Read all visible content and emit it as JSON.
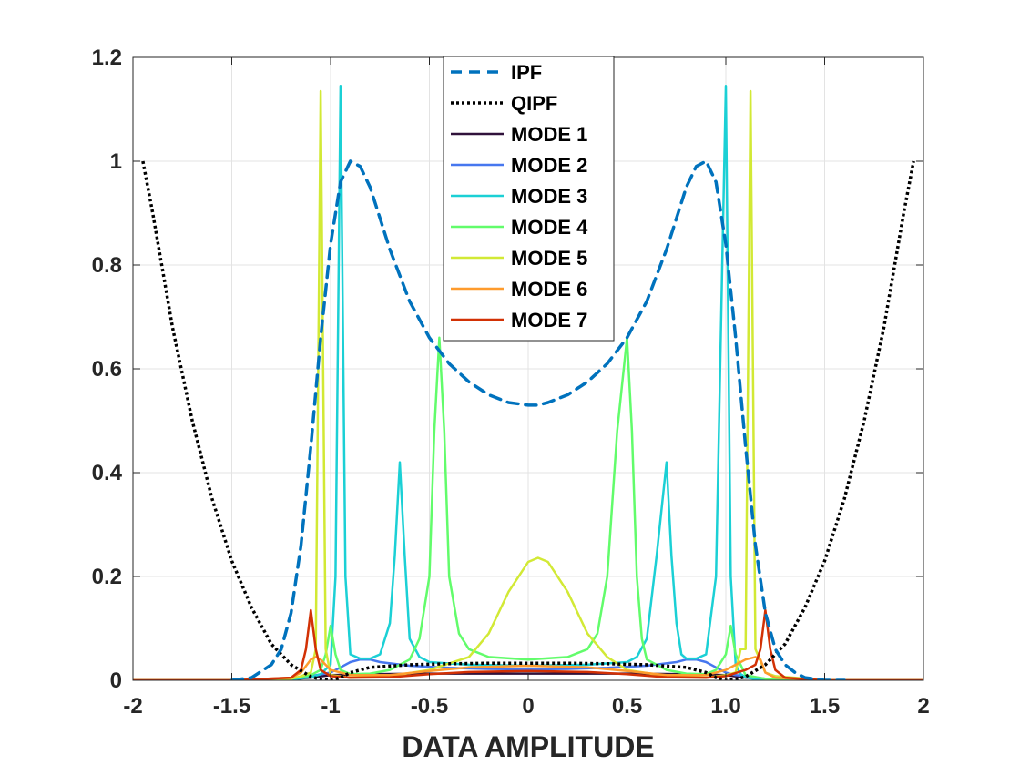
{
  "chart_data": {
    "type": "line",
    "title": "",
    "xlabel": "DATA  AMPLITUDE",
    "ylabel": "",
    "xlim": [
      -2,
      2
    ],
    "ylim": [
      0,
      1.2
    ],
    "grid": true,
    "legend_position": "top-center",
    "xticks": [
      -2,
      -1.5,
      -1,
      -0.5,
      0,
      0.5,
      1,
      1.5,
      2
    ],
    "xtick_labels": [
      "-2",
      "-1.5",
      "-1",
      "-0.5",
      "0",
      "0.5",
      "1.0",
      "1.5",
      "2"
    ],
    "yticks": [
      0,
      0.2,
      0.4,
      0.6,
      0.8,
      1,
      1.2
    ],
    "ytick_labels": [
      "0",
      "0.2",
      "0.4",
      "0.6",
      "0.8",
      "1",
      "1.2"
    ],
    "series": [
      {
        "name": "IPF",
        "color": "#0072BD",
        "style": "dashed",
        "x": [
          -1.5,
          -1.4,
          -1.3,
          -1.25,
          -1.2,
          -1.15,
          -1.1,
          -1.05,
          -1.0,
          -0.95,
          -0.9,
          -0.85,
          -0.8,
          -0.75,
          -0.7,
          -0.6,
          -0.5,
          -0.4,
          -0.3,
          -0.2,
          -0.1,
          0.0,
          0.05,
          0.1,
          0.2,
          0.3,
          0.4,
          0.5,
          0.6,
          0.7,
          0.75,
          0.8,
          0.85,
          0.9,
          0.95,
          1.0,
          1.05,
          1.1,
          1.15,
          1.2,
          1.25,
          1.3,
          1.35,
          1.4,
          1.5,
          1.6
        ],
        "values": [
          0.0,
          0.005,
          0.03,
          0.06,
          0.13,
          0.26,
          0.45,
          0.66,
          0.84,
          0.96,
          1.0,
          0.99,
          0.95,
          0.89,
          0.83,
          0.73,
          0.66,
          0.61,
          0.575,
          0.55,
          0.535,
          0.53,
          0.53,
          0.535,
          0.55,
          0.575,
          0.61,
          0.66,
          0.73,
          0.83,
          0.89,
          0.95,
          0.99,
          1.0,
          0.96,
          0.84,
          0.66,
          0.45,
          0.26,
          0.13,
          0.06,
          0.03,
          0.015,
          0.005,
          0.0,
          0.0
        ]
      },
      {
        "name": "QIPF",
        "color": "#000000",
        "style": "dotted",
        "x": [
          -1.95,
          -1.9,
          -1.8,
          -1.7,
          -1.6,
          -1.5,
          -1.4,
          -1.3,
          -1.2,
          -1.1,
          -1.05,
          -1.0,
          -0.95,
          -0.9,
          -0.8,
          -0.6,
          -0.4,
          -0.2,
          0.0,
          0.2,
          0.4,
          0.6,
          0.8,
          0.9,
          0.95,
          1.0,
          1.05,
          1.1,
          1.2,
          1.3,
          1.4,
          1.5,
          1.6,
          1.7,
          1.8,
          1.9,
          1.95
        ],
        "values": [
          1.0,
          0.9,
          0.68,
          0.5,
          0.35,
          0.23,
          0.14,
          0.07,
          0.03,
          0.007,
          0.002,
          0.0,
          0.005,
          0.015,
          0.025,
          0.03,
          0.032,
          0.033,
          0.033,
          0.033,
          0.032,
          0.03,
          0.025,
          0.015,
          0.005,
          0.0,
          0.002,
          0.007,
          0.03,
          0.07,
          0.14,
          0.23,
          0.35,
          0.5,
          0.68,
          0.9,
          1.0
        ]
      },
      {
        "name": "MODE 1",
        "color": "#30123B",
        "style": "solid",
        "x": [
          -2.0,
          -1.5,
          -1.2,
          -1.1,
          -1.0,
          -0.8,
          -0.5,
          0.0,
          0.5,
          0.8,
          1.0,
          1.1,
          1.2,
          1.5,
          2.0
        ],
        "values": [
          0.0,
          0.0,
          0.002,
          0.005,
          0.01,
          0.012,
          0.013,
          0.013,
          0.013,
          0.012,
          0.01,
          0.005,
          0.002,
          0.0,
          0.0
        ]
      },
      {
        "name": "MODE 2",
        "color": "#4777EF",
        "style": "solid",
        "x": [
          -2.0,
          -1.5,
          -1.2,
          -1.1,
          -1.0,
          -0.95,
          -0.9,
          -0.85,
          -0.8,
          -0.75,
          -0.6,
          -0.4,
          -0.2,
          0.0,
          0.2,
          0.4,
          0.6,
          0.75,
          0.8,
          0.85,
          0.9,
          0.95,
          1.0,
          1.05,
          1.1,
          1.2,
          1.5,
          2.0
        ],
        "values": [
          0.0,
          0.0,
          0.003,
          0.008,
          0.015,
          0.025,
          0.035,
          0.04,
          0.04,
          0.035,
          0.028,
          0.024,
          0.022,
          0.021,
          0.022,
          0.024,
          0.028,
          0.035,
          0.04,
          0.04,
          0.035,
          0.025,
          0.015,
          0.01,
          0.008,
          0.003,
          0.0,
          0.0
        ]
      },
      {
        "name": "MODE 3",
        "color": "#1BD0D5",
        "style": "solid",
        "x": [
          -2.0,
          -1.5,
          -1.2,
          -1.1,
          -1.05,
          -1.0,
          -0.975,
          -0.95,
          -0.925,
          -0.9,
          -0.85,
          -0.8,
          -0.75,
          -0.7,
          -0.675,
          -0.65,
          -0.625,
          -0.6,
          -0.55,
          -0.5,
          -0.3,
          0.0,
          0.3,
          0.5,
          0.55,
          0.6,
          0.65,
          0.7,
          0.725,
          0.75,
          0.775,
          0.8,
          0.85,
          0.9,
          0.95,
          1.0,
          1.025,
          1.05,
          1.075,
          1.1,
          1.15,
          1.2,
          1.5,
          2.0
        ],
        "values": [
          0.0,
          0.0,
          0.002,
          0.006,
          0.012,
          0.03,
          0.2,
          1.145,
          0.2,
          0.05,
          0.042,
          0.042,
          0.05,
          0.11,
          0.24,
          0.42,
          0.24,
          0.08,
          0.045,
          0.035,
          0.03,
          0.028,
          0.03,
          0.035,
          0.045,
          0.08,
          0.24,
          0.42,
          0.24,
          0.11,
          0.05,
          0.042,
          0.042,
          0.05,
          0.2,
          1.145,
          0.2,
          0.03,
          0.012,
          0.006,
          0.002,
          0.0,
          0.0,
          0.0
        ]
      },
      {
        "name": "MODE 4",
        "color": "#62FC6B",
        "style": "solid",
        "x": [
          -2.0,
          -1.5,
          -1.2,
          -1.1,
          -1.05,
          -1.025,
          -1.0,
          -0.975,
          -0.95,
          -0.9,
          -0.8,
          -0.7,
          -0.6,
          -0.55,
          -0.5,
          -0.475,
          -0.45,
          -0.425,
          -0.4,
          -0.35,
          -0.3,
          -0.2,
          0.0,
          0.2,
          0.3,
          0.35,
          0.4,
          0.45,
          0.5,
          0.525,
          0.55,
          0.575,
          0.6,
          0.7,
          0.8,
          0.9,
          0.95,
          1.0,
          1.025,
          1.05,
          1.1,
          1.2,
          1.5,
          2.0
        ],
        "values": [
          0.0,
          0.0,
          0.003,
          0.01,
          0.02,
          0.05,
          0.105,
          0.05,
          0.02,
          0.012,
          0.013,
          0.02,
          0.04,
          0.08,
          0.2,
          0.48,
          0.66,
          0.48,
          0.2,
          0.09,
          0.06,
          0.045,
          0.04,
          0.045,
          0.06,
          0.09,
          0.2,
          0.48,
          0.66,
          0.48,
          0.2,
          0.08,
          0.04,
          0.02,
          0.013,
          0.012,
          0.02,
          0.05,
          0.105,
          0.05,
          0.01,
          0.003,
          0.0,
          0.0
        ]
      },
      {
        "name": "MODE 5",
        "color": "#D2E935",
        "style": "solid",
        "x": [
          -2.0,
          -1.5,
          -1.2,
          -1.15,
          -1.1,
          -1.075,
          -1.05,
          -1.025,
          -1.0,
          -0.9,
          -0.7,
          -0.5,
          -0.3,
          -0.2,
          -0.1,
          0.0,
          0.05,
          0.1,
          0.2,
          0.3,
          0.4,
          0.5,
          0.7,
          0.9,
          1.0,
          1.05,
          1.075,
          1.1,
          1.125,
          1.15,
          1.2,
          1.25,
          1.5,
          2.0
        ],
        "values": [
          0.0,
          0.0,
          0.003,
          0.008,
          0.015,
          0.06,
          1.135,
          0.06,
          0.01,
          0.005,
          0.008,
          0.02,
          0.045,
          0.09,
          0.17,
          0.228,
          0.236,
          0.228,
          0.17,
          0.09,
          0.045,
          0.02,
          0.008,
          0.005,
          0.01,
          0.015,
          0.06,
          0.06,
          1.135,
          0.06,
          0.015,
          0.008,
          0.0,
          0.0
        ]
      },
      {
        "name": "MODE 6",
        "color": "#FE9B2D",
        "style": "solid",
        "x": [
          -2.0,
          -1.5,
          -1.2,
          -1.15,
          -1.1,
          -1.075,
          -1.05,
          -1.0,
          -0.9,
          -0.7,
          -0.5,
          -0.3,
          0.0,
          0.3,
          0.5,
          0.7,
          0.9,
          1.0,
          1.05,
          1.1,
          1.15,
          1.175,
          1.2,
          1.25,
          1.5,
          2.0
        ],
        "values": [
          0.0,
          0.0,
          0.005,
          0.015,
          0.04,
          0.045,
          0.04,
          0.02,
          0.01,
          0.01,
          0.018,
          0.025,
          0.028,
          0.025,
          0.018,
          0.01,
          0.01,
          0.02,
          0.03,
          0.04,
          0.045,
          0.04,
          0.015,
          0.005,
          0.0,
          0.0
        ]
      },
      {
        "name": "MODE 7",
        "color": "#D23105",
        "style": "solid",
        "x": [
          -2.0,
          -1.5,
          -1.2,
          -1.15,
          -1.125,
          -1.1,
          -1.075,
          -1.05,
          -1.0,
          -0.9,
          -0.7,
          -0.5,
          -0.3,
          0.0,
          0.3,
          0.5,
          0.7,
          0.9,
          1.0,
          1.1,
          1.15,
          1.175,
          1.2,
          1.225,
          1.25,
          1.3,
          1.5,
          2.0
        ],
        "values": [
          0.0,
          0.0,
          0.005,
          0.02,
          0.06,
          0.135,
          0.06,
          0.02,
          0.008,
          0.005,
          0.006,
          0.012,
          0.016,
          0.018,
          0.016,
          0.012,
          0.006,
          0.005,
          0.008,
          0.02,
          0.03,
          0.06,
          0.135,
          0.06,
          0.02,
          0.005,
          0.0,
          0.0
        ]
      }
    ]
  }
}
